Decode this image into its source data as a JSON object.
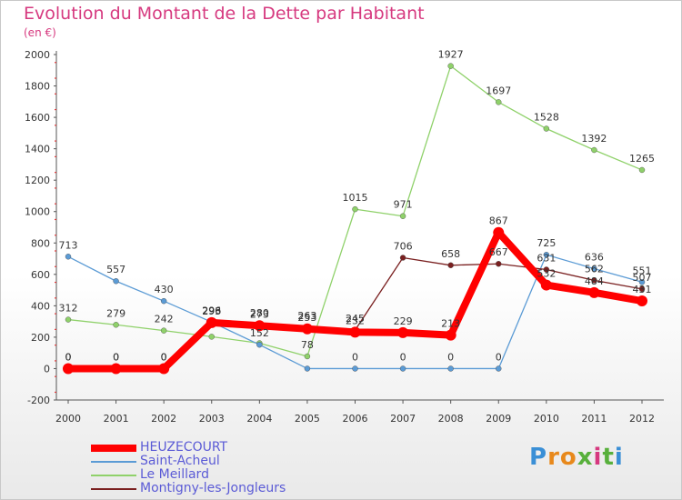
{
  "header": {
    "title": "Evolution du Montant de la Dette par Habitant",
    "subtitle": "(en €)"
  },
  "brand": {
    "text": "Proxiti",
    "letter_colors": [
      "#3a8fd6",
      "#e8891c",
      "#e8891c",
      "#58b03c",
      "#d6397f",
      "#58b03c",
      "#3a8fd6"
    ]
  },
  "chart_data": {
    "type": "line",
    "x": [
      2000,
      2001,
      2002,
      2003,
      2004,
      2005,
      2006,
      2007,
      2008,
      2009,
      2010,
      2011,
      2012
    ],
    "ylim": [
      -200,
      2000
    ],
    "yticks": [
      -200,
      0,
      200,
      400,
      600,
      800,
      1000,
      1200,
      1400,
      1600,
      1800,
      2000
    ],
    "grid": false,
    "legend_position": "bottom-left",
    "series": [
      {
        "name": "HEUZECOURT",
        "color": "#ff0000",
        "values": [
          0,
          0,
          0,
          293,
          273,
          253,
          232,
          229,
          213,
          867,
          532,
          484,
          431
        ]
      },
      {
        "name": "Saint-Acheul",
        "color": "#5b9bd5",
        "values": [
          713,
          557,
          430,
          296,
          152,
          0,
          0,
          0,
          0,
          0,
          725,
          636,
          551
        ]
      },
      {
        "name": "Le Meillard",
        "color": "#8fd16a",
        "values": [
          312,
          279,
          242,
          203,
          162,
          78,
          1015,
          971,
          1927,
          1697,
          1528,
          1392,
          1265
        ]
      },
      {
        "name": "Montigny-les-Jongleurs",
        "color": "#7a2020",
        "values": [
          0,
          0,
          0,
          296,
          280,
          263,
          245,
          706,
          658,
          667,
          631,
          562,
          507
        ]
      }
    ],
    "data_labels": [
      {
        "series": 3,
        "values": [
          "0",
          "0",
          "0",
          "296",
          "280",
          "263",
          "245",
          "706",
          "658",
          "667",
          "631",
          "562",
          "507"
        ]
      },
      {
        "series": 1,
        "values": [
          "713",
          "557",
          "430",
          "296",
          "152",
          "",
          "0",
          "0",
          "0",
          "0",
          "725",
          "636",
          "551"
        ]
      },
      {
        "series": 2,
        "values": [
          "312",
          "279",
          "242",
          "",
          "",
          "78",
          "1015",
          "971",
          "1927",
          "1697",
          "1528",
          "1392",
          "1265"
        ]
      },
      {
        "series": 0,
        "values": [
          "0",
          "0",
          "0",
          "293",
          "273",
          "253",
          "232",
          "229",
          "213",
          "867",
          "532",
          "484",
          "431"
        ]
      }
    ]
  }
}
